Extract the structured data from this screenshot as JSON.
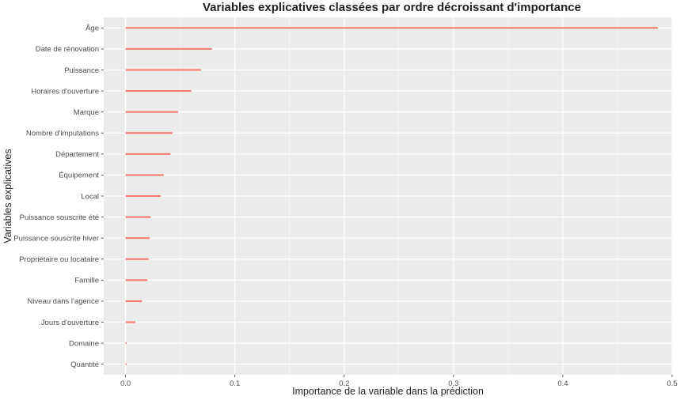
{
  "chart_data": {
    "type": "bar",
    "orientation": "horizontal",
    "title": "Variables explicatives classées par ordre décroissant d'importance",
    "xlabel": "Importance de la variable dans la prédiction",
    "ylabel": "Variables explicatives",
    "xlim": [
      -0.02,
      0.5
    ],
    "xticks": [
      0.0,
      0.1,
      0.2,
      0.3,
      0.4,
      0.5
    ],
    "xtick_labels": [
      "0.0",
      "0.1",
      "0.2",
      "0.3",
      "0.4",
      "0.5"
    ],
    "grid": true,
    "legend": "none",
    "bar_color": "#f8766d",
    "panel_background": "#ebebeb",
    "gridline_color": "#ffffff",
    "categories": [
      "Âge",
      "Date de rénovation",
      "Puissance",
      "Horaires d'ouverture",
      "Marque",
      "Nombre d'imputations",
      "Département",
      "Équipement",
      "Local",
      "Puissance souscrite été",
      "Puissance souscrite hiver",
      "Propriétaire ou locataire",
      "Famille",
      "Niveau dans l'agence",
      "Jours d'ouverture",
      "Domaine",
      "Quantité"
    ],
    "values": [
      0.487,
      0.079,
      0.069,
      0.06,
      0.048,
      0.043,
      0.041,
      0.035,
      0.032,
      0.023,
      0.022,
      0.021,
      0.02,
      0.015,
      0.009,
      0.001,
      0.001
    ]
  }
}
